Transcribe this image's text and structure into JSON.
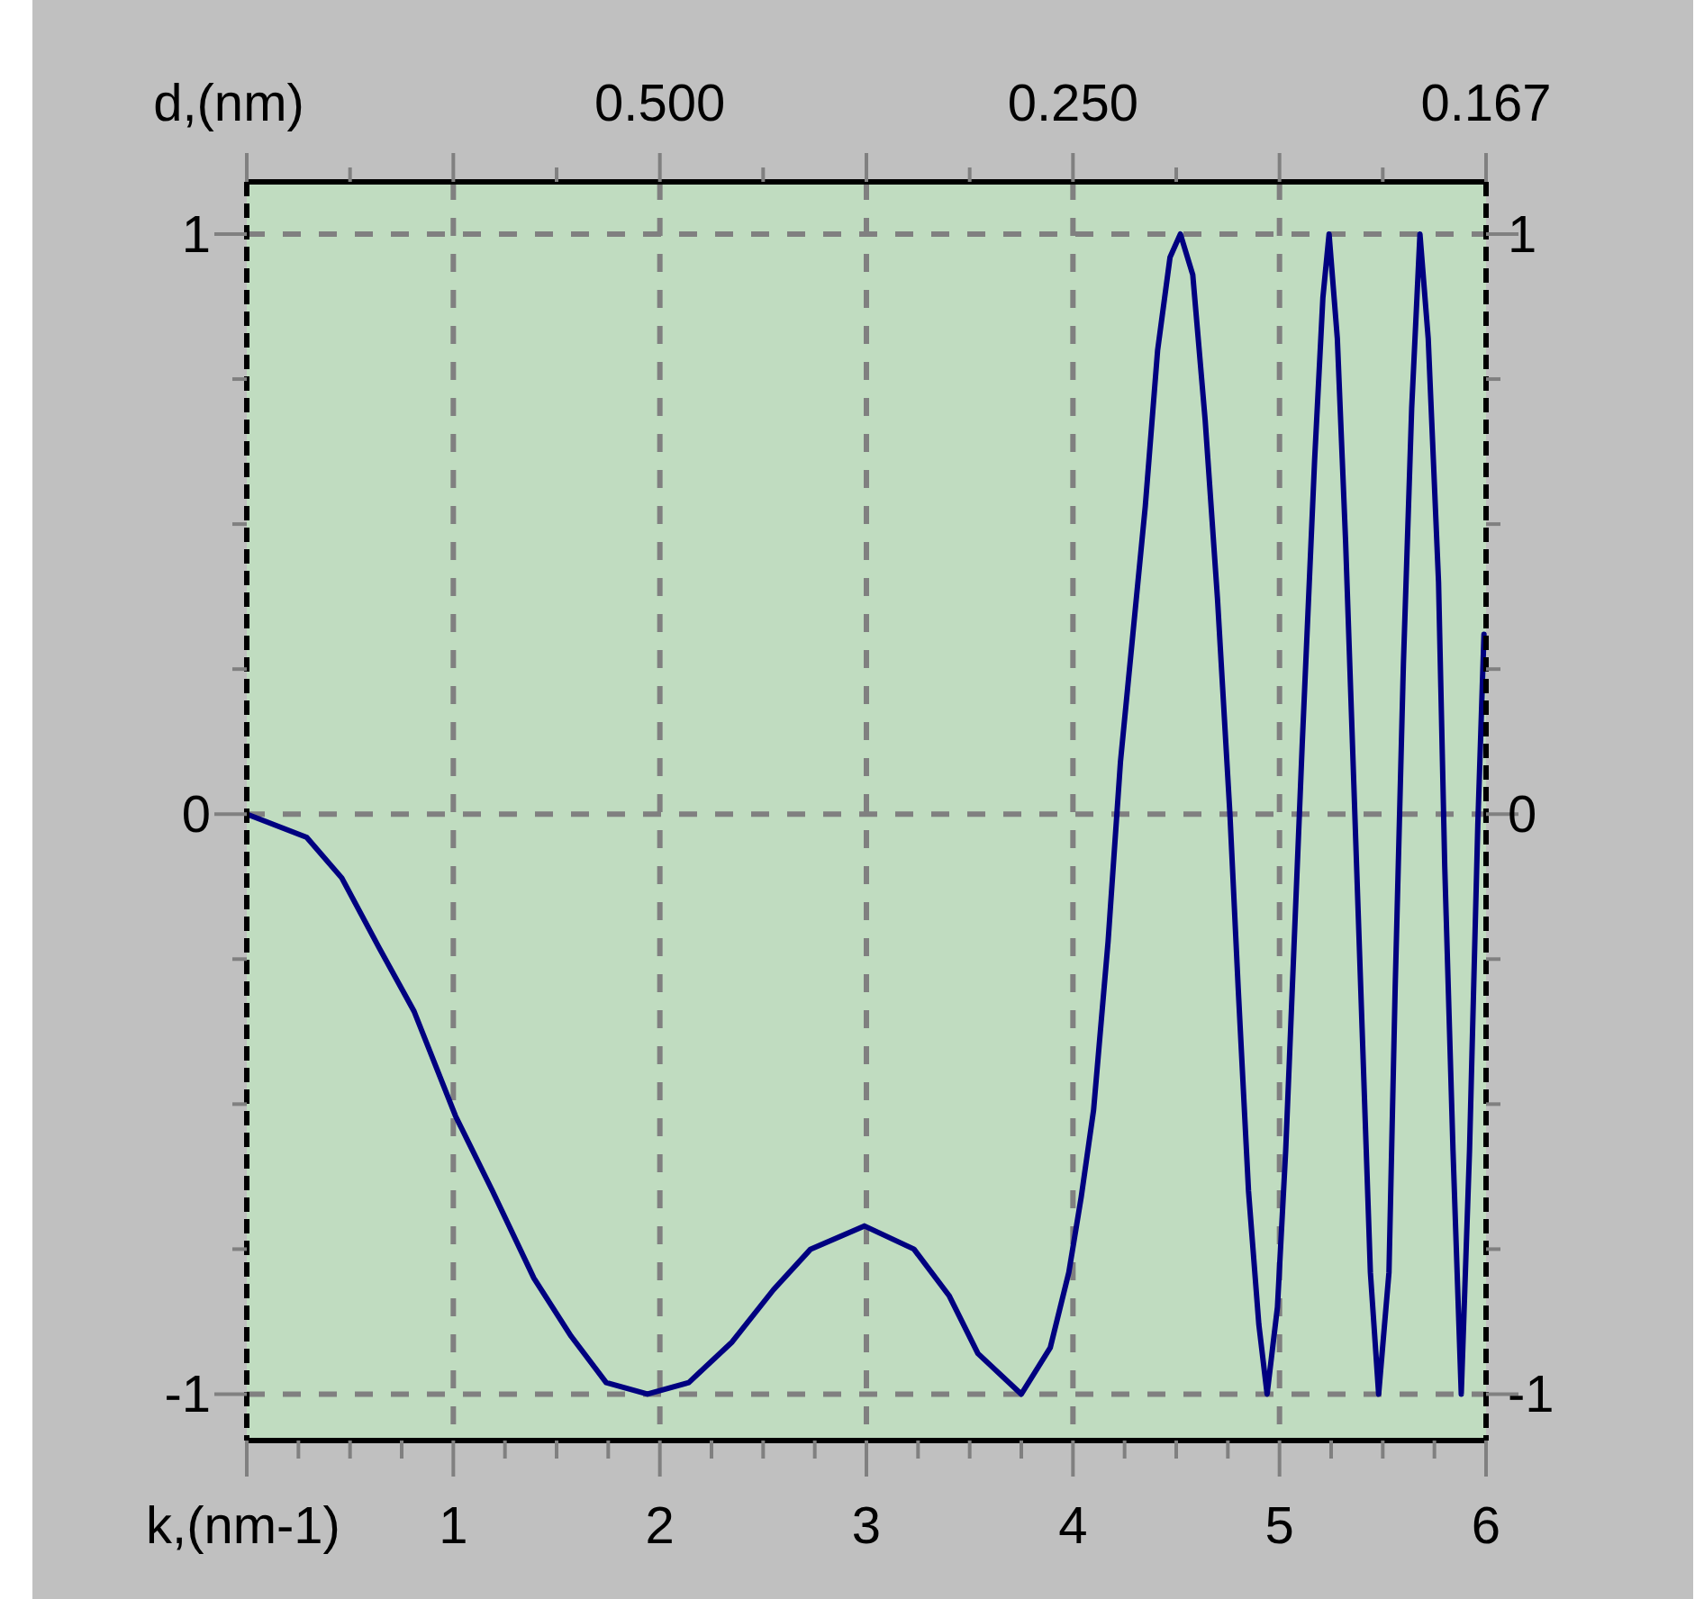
{
  "chart_data": {
    "type": "line",
    "xlabel": "k,(nm-1)",
    "xlim": [
      0,
      6
    ],
    "ylim": [
      -1.08,
      1.09
    ],
    "y2lim": [
      -1.08,
      1.09
    ],
    "xticks": [
      {
        "value": 0,
        "label": null
      },
      {
        "value": 0.25,
        "label": null
      },
      {
        "value": 0.5,
        "label": null
      },
      {
        "value": 0.75,
        "label": null
      },
      1,
      {
        "value": 1.25,
        "label": null
      },
      {
        "value": 1.5,
        "label": null
      },
      {
        "value": 1.75,
        "label": null
      },
      2,
      {
        "value": 2.25,
        "label": null
      },
      {
        "value": 2.5,
        "label": null
      },
      {
        "value": 2.75,
        "label": null
      },
      3,
      {
        "value": 3.25,
        "label": null
      },
      {
        "value": 3.5,
        "label": null
      },
      {
        "value": 3.75,
        "label": null
      },
      4,
      {
        "value": 4.25,
        "label": null
      },
      {
        "value": 4.5,
        "label": null
      },
      {
        "value": 4.75,
        "label": null
      },
      5,
      {
        "value": 5.25,
        "label": null
      },
      {
        "value": 5.5,
        "label": null
      },
      {
        "value": 5.75,
        "label": null
      },
      6
    ],
    "annotations": [
      "d,(nm)",
      "0.500",
      "0.250",
      "0.167"
    ],
    "yticks": [
      -1,
      {
        "value": -0.75,
        "label": null
      },
      {
        "value": -0.5,
        "label": null
      },
      {
        "value": -0.25,
        "label": null
      },
      0,
      {
        "value": 0.25,
        "label": null
      },
      {
        "value": 0.5,
        "label": null
      },
      {
        "value": 0.75,
        "label": null
      },
      1
    ],
    "y2ticks": [
      -1,
      {
        "value": -0.75,
        "label": null
      },
      {
        "value": -0.5,
        "label": null
      },
      {
        "value": -0.25,
        "label": null
      },
      0,
      {
        "value": 0.25,
        "label": null
      },
      {
        "value": 0.5,
        "label": null
      },
      {
        "value": 0.75,
        "label": null
      },
      1
    ],
    "grid": true,
    "line_style": "solid",
    "series": [
      {
        "color": "#000080",
        "x": [
          0,
          0.29,
          0.46,
          0.64,
          0.81,
          1.01,
          1.19,
          1.39,
          1.57,
          1.74,
          1.94,
          2.14,
          2.35,
          2.55,
          2.73,
          2.99,
          3.23,
          3.4,
          3.54,
          3.75,
          3.89,
          3.98,
          4.04,
          4.1,
          4.17,
          4.23,
          4.29,
          4.35,
          4.41,
          4.47,
          4.52,
          4.58,
          4.64,
          4.7,
          4.76,
          4.8,
          4.85,
          4.9,
          4.94,
          4.99,
          5.03,
          5.07,
          5.11,
          5.17,
          5.21,
          5.24,
          5.28,
          5.32,
          5.36,
          5.4,
          5.44,
          5.48,
          5.53,
          5.56,
          5.6,
          5.64,
          5.68,
          5.72,
          5.77,
          5.8,
          5.84,
          5.88,
          5.92,
          5.96,
          5.99
        ],
        "values": [
          0,
          -0.04,
          -0.11,
          -0.23,
          -0.34,
          -0.52,
          -0.65,
          -0.8,
          -0.9,
          -0.98,
          -1,
          -0.98,
          -0.91,
          -0.82,
          -0.75,
          -0.71,
          -0.75,
          -0.83,
          -0.93,
          -1,
          -0.92,
          -0.79,
          -0.66,
          -0.51,
          -0.22,
          0.09,
          0.31,
          0.53,
          0.8,
          0.96,
          1,
          0.93,
          0.68,
          0.37,
          0,
          -0.3,
          -0.65,
          -0.88,
          -1,
          -0.85,
          -0.58,
          -0.23,
          0.12,
          0.61,
          0.89,
          1,
          0.82,
          0.47,
          0.05,
          -0.37,
          -0.79,
          -1,
          -0.79,
          -0.3,
          0.26,
          0.7,
          1,
          0.82,
          0.4,
          -0.09,
          -0.58,
          -1,
          -0.58,
          -0.02,
          0.31
        ]
      }
    ]
  }
}
